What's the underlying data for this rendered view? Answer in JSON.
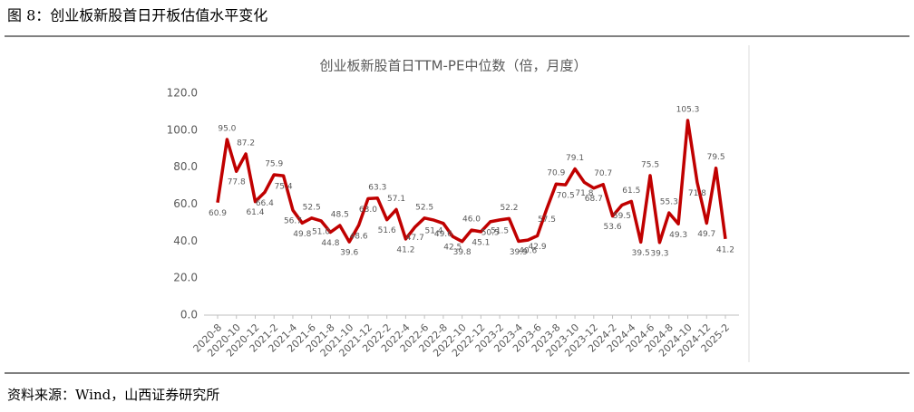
{
  "figure_title": "图 8：创业板新股首日开板估值水平变化",
  "source": "资料来源：Wind，山西证券研究所",
  "chart_data": {
    "type": "line",
    "title": "创业板新股首日TTM-PE中位数（倍，月度）",
    "color": "#c00000",
    "categories": [
      "2020-8",
      null,
      "2020-10",
      null,
      "2020-12",
      null,
      "2021-2",
      null,
      "2021-4",
      null,
      "2021-6",
      null,
      "2021-8",
      null,
      "2021-10",
      null,
      "2021-12",
      null,
      "2022-2",
      null,
      "2022-4",
      null,
      "2022-6",
      null,
      "2022-8",
      null,
      "2022-10",
      null,
      "2022-12",
      null,
      "2023-2",
      null,
      "2023-4",
      null,
      "2023-6",
      null,
      "2023-8",
      null,
      "2023-10",
      null,
      "2023-12",
      null,
      "2024-2",
      null,
      "2024-4",
      null,
      "2024-6",
      null,
      "2024-8",
      null,
      "2024-10",
      null,
      "2024-12",
      null,
      "2025-2"
    ],
    "values": [
      60.9,
      95.0,
      77.8,
      87.2,
      61.4,
      66.4,
      75.9,
      75.4,
      56.7,
      49.8,
      52.5,
      51.0,
      44.8,
      48.5,
      39.6,
      48.6,
      63.0,
      63.3,
      51.6,
      57.1,
      41.2,
      47.7,
      52.5,
      51.4,
      49.6,
      42.5,
      39.8,
      46.0,
      45.1,
      50.5,
      51.5,
      52.2,
      39.9,
      40.6,
      42.9,
      57.5,
      70.9,
      70.5,
      79.1,
      71.8,
      68.7,
      70.7,
      53.6,
      59.5,
      61.5,
      39.5,
      75.5,
      39.3,
      55.3,
      49.3,
      105.3,
      71.8,
      49.7,
      79.5,
      41.2
    ],
    "value_labels": [
      "60.9",
      "95.0",
      "77.8",
      "87.2",
      "61.4",
      "66.4",
      "75.9",
      "75.4",
      "56.7",
      "49.8",
      "52.5",
      "51.0",
      "44.8",
      "48.5",
      "39.6",
      "48.6",
      "63.0",
      "63.3",
      "51.6",
      "57.1",
      "41.2",
      "47.7",
      "52.5",
      "51.4",
      "49.6",
      "42.5",
      "39.8",
      "46.0",
      "45.1",
      "50.5",
      "51.5",
      "52.2",
      "39.9",
      "40.6",
      "42.9",
      "57.5",
      "70.9",
      "70.5",
      "79.1",
      "71.8",
      "68.7",
      "70.7",
      "53.6",
      "59.5",
      "61.5",
      "39.5",
      "75.5",
      "39.3",
      "55.3",
      "49.3",
      "105.3",
      "71.8",
      "49.7",
      "79.5",
      "41.2"
    ],
    "ylim": [
      0,
      120
    ],
    "yticks": [
      {
        "value": 0,
        "label": "0.0"
      },
      {
        "value": 20,
        "label": "20.0"
      },
      {
        "value": 40,
        "label": "40.0"
      },
      {
        "value": 60,
        "label": "60.0"
      },
      {
        "value": 80,
        "label": "80.0"
      },
      {
        "value": 100,
        "label": "100.0"
      },
      {
        "value": 120,
        "label": "120.0"
      }
    ],
    "grid": false
  }
}
